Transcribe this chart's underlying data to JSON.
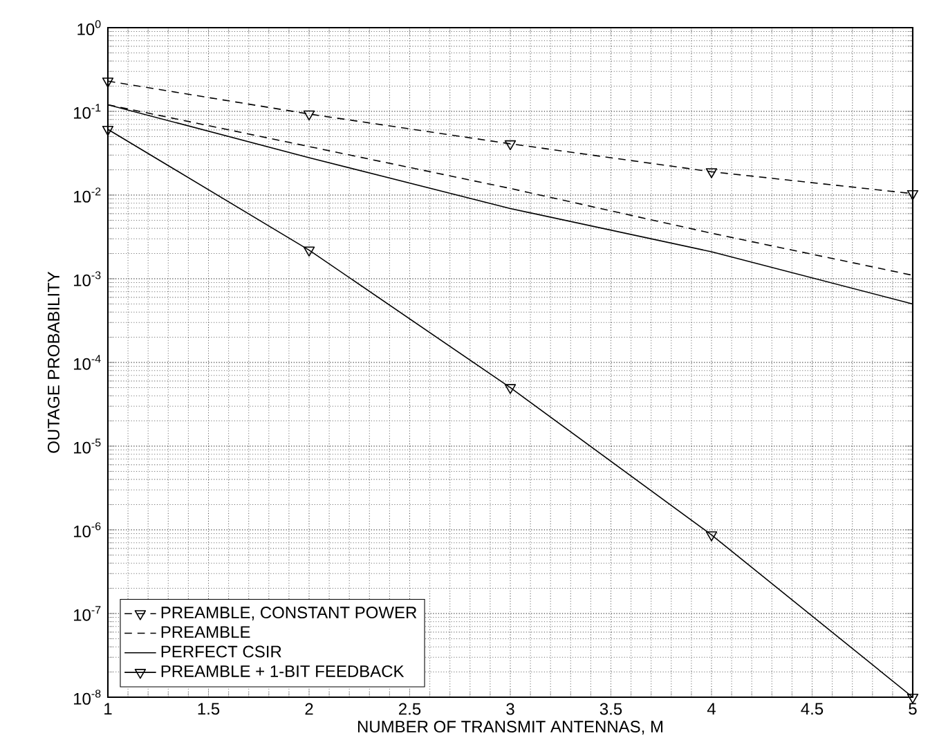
{
  "chart_data": {
    "type": "line",
    "xlabel": "NUMBER OF TRANSMIT ANTENNAS, M",
    "ylabel": "OUTAGE PROBABILITY",
    "x": [
      1,
      2,
      3,
      4,
      5
    ],
    "series": [
      {
        "name": "PREAMBLE, CONSTANT POWER",
        "color": "#000000",
        "line_style": "dashed",
        "marker": "triangle",
        "values": [
          0.23,
          0.093,
          0.041,
          0.019,
          0.0104
        ]
      },
      {
        "name": "PREAMBLE",
        "color": "#000000",
        "line_style": "dashed",
        "marker": "none",
        "values": [
          0.12,
          0.038,
          0.012,
          0.0035,
          0.0011
        ]
      },
      {
        "name": "PERFECT CSIR",
        "color": "#000000",
        "line_style": "solid",
        "marker": "none",
        "values": [
          0.12,
          0.028,
          0.0069,
          0.0021,
          0.0005
        ]
      },
      {
        "name": "PREAMBLE + 1-BIT FEEDBACK",
        "color": "#000000",
        "line_style": "solid",
        "marker": "triangle",
        "values": [
          0.061,
          0.0022,
          5e-05,
          8.7e-07,
          1e-08
        ]
      }
    ],
    "log": "y",
    "xlim": [
      1,
      5
    ],
    "ylim": [
      1e-08,
      1
    ],
    "xticks": [
      1,
      1.5,
      2,
      2.5,
      3,
      3.5,
      4,
      4.5,
      5
    ],
    "yticks": [
      {
        "value": 1e-08,
        "label": "10$^{-8}$"
      },
      {
        "value": 1e-07,
        "label": "10$^{-7}$"
      },
      {
        "value": 1e-06,
        "label": "10$^{-6}$"
      },
      {
        "value": 1e-05,
        "label": "10$^{-5}$"
      },
      {
        "value": 0.0001,
        "label": "10$^{-4}$"
      },
      {
        "value": 0.001,
        "label": "10$^{-3}$"
      },
      {
        "value": 0.01,
        "label": "10$^{-2}$"
      },
      {
        "value": 0.1,
        "label": "10$^{-1}$"
      },
      {
        "value": 1,
        "label": "10$^{0}$"
      }
    ],
    "grid": true,
    "legend": "bottom left"
  }
}
